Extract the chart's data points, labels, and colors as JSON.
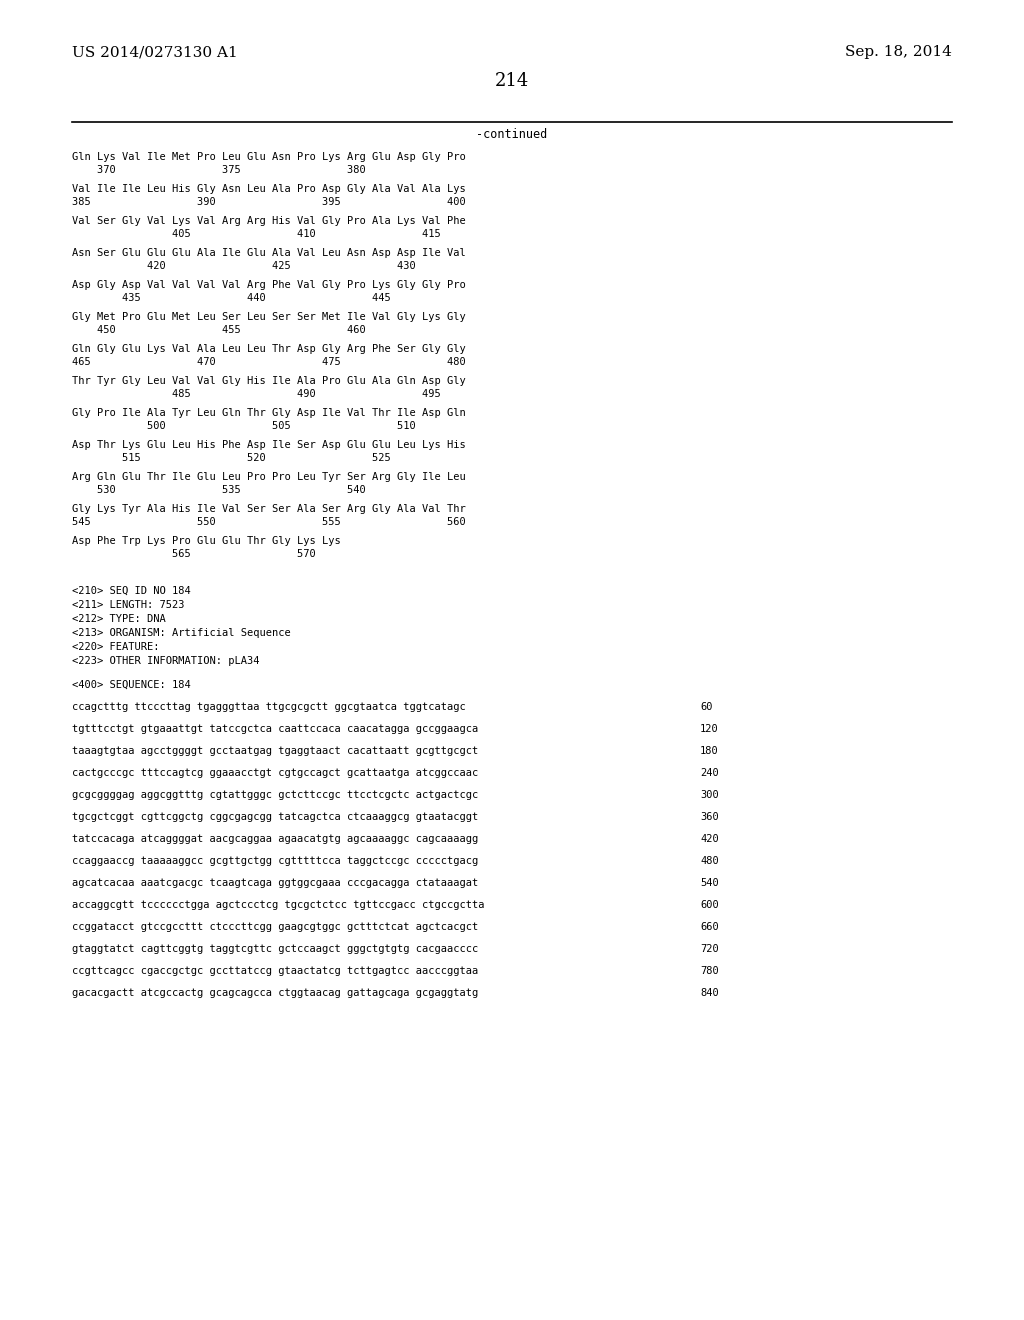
{
  "header_left": "US 2014/0273130 A1",
  "header_right": "Sep. 18, 2014",
  "page_number": "214",
  "continued_label": "-continued",
  "background_color": "#ffffff",
  "text_color": "#000000",
  "font_size_header": 11,
  "font_size_body": 8.5,
  "font_size_page": 13,
  "amino_acid_lines": [
    {
      "seq": "Gln Lys Val Ile Met Pro Leu Glu Asn Pro Lys Arg Glu Asp Gly Pro",
      "nums": "    370                 375                 380"
    },
    {
      "seq": "Val Ile Ile Leu His Gly Asn Leu Ala Pro Asp Gly Ala Val Ala Lys",
      "nums": "385                 390                 395                 400"
    },
    {
      "seq": "Val Ser Gly Val Lys Val Arg Arg His Val Gly Pro Ala Lys Val Phe",
      "nums": "                405                 410                 415"
    },
    {
      "seq": "Asn Ser Glu Glu Glu Ala Ile Glu Ala Val Leu Asn Asp Asp Ile Val",
      "nums": "            420                 425                 430"
    },
    {
      "seq": "Asp Gly Asp Val Val Val Val Arg Phe Val Gly Pro Lys Gly Gly Pro",
      "nums": "        435                 440                 445"
    },
    {
      "seq": "Gly Met Pro Glu Met Leu Ser Leu Ser Ser Met Ile Val Gly Lys Gly",
      "nums": "    450                 455                 460"
    },
    {
      "seq": "Gln Gly Glu Lys Val Ala Leu Leu Thr Asp Gly Arg Phe Ser Gly Gly",
      "nums": "465                 470                 475                 480"
    },
    {
      "seq": "Thr Tyr Gly Leu Val Val Gly His Ile Ala Pro Glu Ala Gln Asp Gly",
      "nums": "                485                 490                 495"
    },
    {
      "seq": "Gly Pro Ile Ala Tyr Leu Gln Thr Gly Asp Ile Val Thr Ile Asp Gln",
      "nums": "            500                 505                 510"
    },
    {
      "seq": "Asp Thr Lys Glu Leu His Phe Asp Ile Ser Asp Glu Glu Leu Lys His",
      "nums": "        515                 520                 525"
    },
    {
      "seq": "Arg Gln Glu Thr Ile Glu Leu Pro Pro Leu Tyr Ser Arg Gly Ile Leu",
      "nums": "    530                 535                 540"
    },
    {
      "seq": "Gly Lys Tyr Ala His Ile Val Ser Ser Ala Ser Arg Gly Ala Val Thr",
      "nums": "545                 550                 555                 560"
    },
    {
      "seq": "Asp Phe Trp Lys Pro Glu Glu Thr Gly Lys Lys",
      "nums": "                565                 570"
    }
  ],
  "metadata_lines": [
    "<210> SEQ ID NO 184",
    "<211> LENGTH: 7523",
    "<212> TYPE: DNA",
    "<213> ORGANISM: Artificial Sequence",
    "<220> FEATURE:",
    "<223> OTHER INFORMATION: pLA34"
  ],
  "sequence_label": "<400> SEQUENCE: 184",
  "dna_lines": [
    {
      "seq": "ccagctttg ttcccttag tgagggttaa ttgcgcgctt ggcgtaatca tggtcatagc",
      "num": "60"
    },
    {
      "seq": "tgtttcctgt gtgaaattgt tatccgctca caattccaca caacatagga gccggaagca",
      "num": "120"
    },
    {
      "seq": "taaagtgtaa agcctggggt gcctaatgag tgaggtaact cacattaatt gcgttgcgct",
      "num": "180"
    },
    {
      "seq": "cactgcccgc tttccagtcg ggaaacctgt cgtgccagct gcattaatga atcggccaac",
      "num": "240"
    },
    {
      "seq": "gcgcggggag aggcggtttg cgtattgggc gctcttccgc ttcctcgctc actgactcgc",
      "num": "300"
    },
    {
      "seq": "tgcgctcggt cgttcggctg cggcgagcgg tatcagctca ctcaaaggcg gtaatacggt",
      "num": "360"
    },
    {
      "seq": "tatccacaga atcaggggat aacgcaggaa agaacatgtg agcaaaaggc cagcaaaagg",
      "num": "420"
    },
    {
      "seq": "ccaggaaccg taaaaaggcc gcgttgctgg cgtttttcca taggctccgc ccccctgacg",
      "num": "480"
    },
    {
      "seq": "agcatcacaa aaatcgacgc tcaagtcaga ggtggcgaaa cccgacagga ctataaagat",
      "num": "540"
    },
    {
      "seq": "accaggcgtt tcccccctgga agctccctcg tgcgctctcc tgttccgacc ctgccgctta",
      "num": "600"
    },
    {
      "seq": "ccggatacct gtccgccttt ctcccttcgg gaagcgtggc gctttctcat agctcacgct",
      "num": "660"
    },
    {
      "seq": "gtaggtatct cagttcggtg taggtcgttc gctccaagct gggctgtgtg cacgaacccc",
      "num": "720"
    },
    {
      "seq": "ccgttcagcc cgaccgctgc gccttatccg gtaactatcg tcttgagtcc aacccggtaa",
      "num": "780"
    },
    {
      "seq": "gacacgactt atcgccactg gcagcagcca ctggtaacag gattagcaga gcgaggtatg",
      "num": "840"
    }
  ]
}
